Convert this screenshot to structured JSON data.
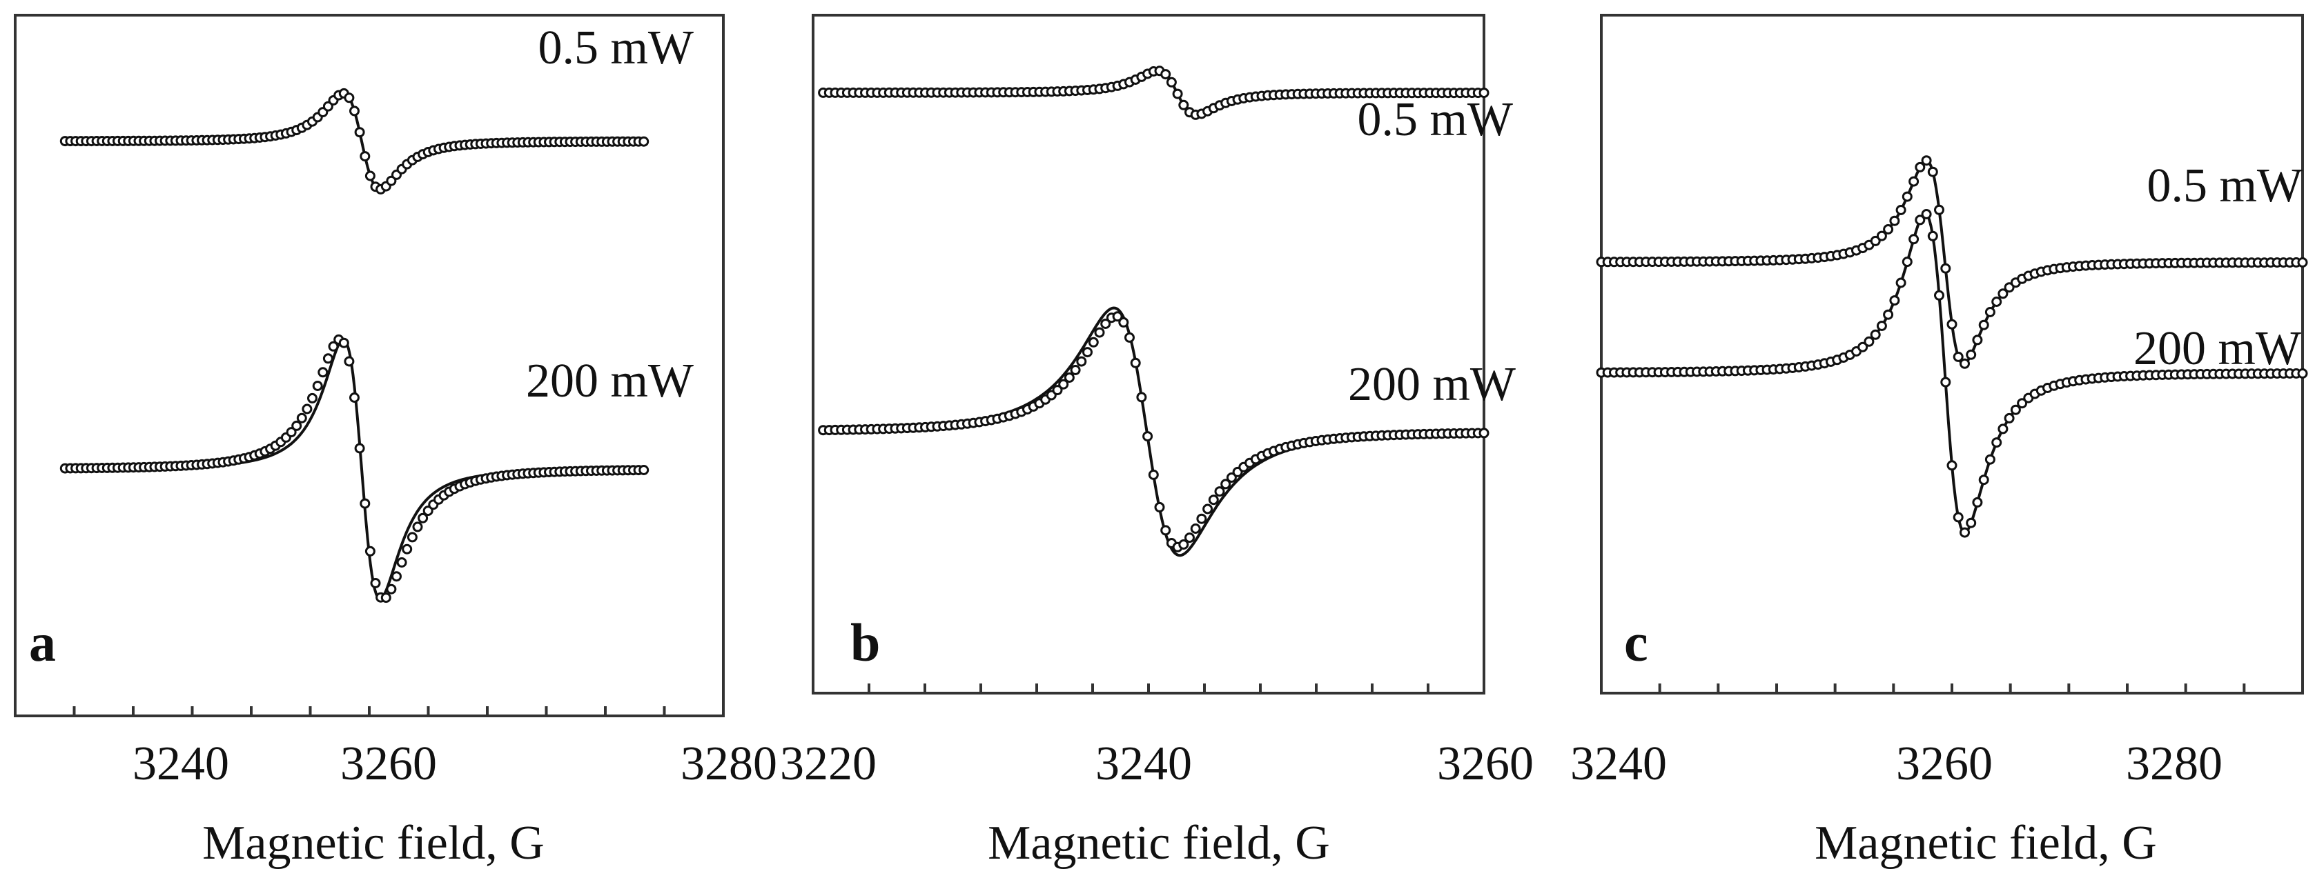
{
  "chart_data": [
    {
      "type": "line",
      "panel_letter": "a",
      "xlabel": "Magnetic field, G",
      "ylabel": "",
      "x_ticks": [
        "3240",
        "3260",
        "3280"
      ],
      "xlim": [
        3230,
        3280
      ],
      "series": [
        {
          "name": "0.5 mW",
          "center": 3255.0,
          "width": 2.2,
          "amplitude": 0.17,
          "baseline": 0.83,
          "x_start": 3234.5,
          "x_end": 3274.5,
          "fit": {
            "center": 3255.0,
            "width": 2.2,
            "amplitude": 0.17,
            "baseline": 0.83
          }
        },
        {
          "name": "200 mW",
          "center": 3255.0,
          "width": 2.6,
          "amplitude": 0.46,
          "baseline": 0.34,
          "x_start": 3234.5,
          "x_end": 3274.5,
          "fit": {
            "center": 3255.0,
            "width": 2.2,
            "amplitude": 0.46,
            "baseline": 0.34
          }
        }
      ]
    },
    {
      "type": "line",
      "panel_letter": "b",
      "xlabel": "Magnetic field, G",
      "ylabel": "",
      "x_ticks": [
        "3220",
        "3240",
        "3260"
      ],
      "xlim": [
        3220,
        3260
      ],
      "series": [
        {
          "name": "0.5 mW",
          "center": 3241.7,
          "width": 2.0,
          "amplitude": 0.08,
          "baseline": 0.9,
          "x_start": 3220.6,
          "x_end": 3260,
          "fit": {
            "center": 3241.7,
            "width": 2.0,
            "amplitude": 0.08,
            "baseline": 0.9
          }
        },
        {
          "name": "200 mW",
          "center": 3239.9,
          "width": 3.2,
          "amplitude": 0.42,
          "baseline": 0.38,
          "x_start": 3220.6,
          "x_end": 3260,
          "fit": {
            "center": 3239.9,
            "width": 3.4,
            "amplitude": 0.45,
            "baseline": 0.38
          }
        }
      ]
    },
    {
      "type": "line",
      "panel_letter": "c",
      "xlabel": "Magnetic field, G",
      "ylabel": "",
      "x_ticks": [
        "3240",
        "3260",
        "3280"
      ],
      "xlim": [
        3240,
        3290
      ],
      "series": [
        {
          "name": "0.5 mW",
          "center": 3264.5,
          "width": 2.3,
          "amplitude": 0.37,
          "baseline": 0.64,
          "x_start": 3240,
          "x_end": 3290,
          "fit": {
            "center": 3264.5,
            "width": 2.3,
            "amplitude": 0.37,
            "baseline": 0.64
          }
        },
        {
          "name": "200 mW",
          "center": 3264.5,
          "width": 2.45,
          "amplitude": 0.58,
          "baseline": 0.47,
          "x_start": 3240,
          "x_end": 3290,
          "fit": {
            "center": 3264.5,
            "width": 2.45,
            "amplitude": 0.58,
            "baseline": 0.47
          }
        }
      ]
    }
  ]
}
